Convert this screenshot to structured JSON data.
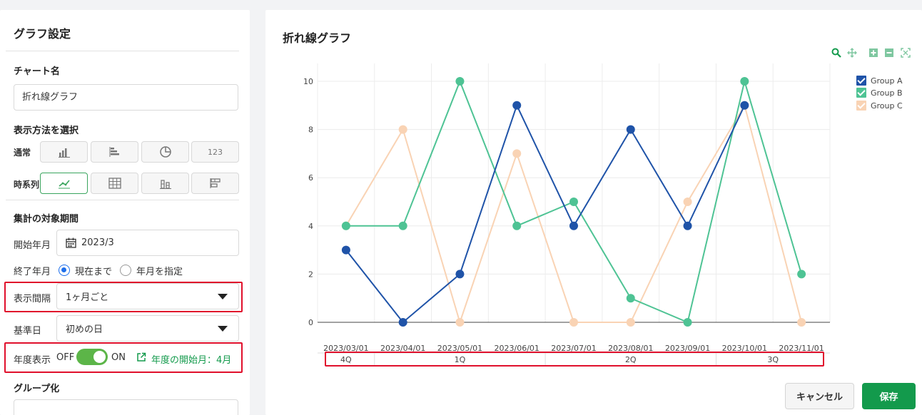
{
  "settings": {
    "title": "グラフ設定",
    "chart_name_label": "チャート名",
    "chart_name_value": "折れ線グラフ",
    "display_method_label": "表示方法を選択",
    "normal_label": "通常",
    "timeseries_label": "時系列",
    "number_mode_label": "123",
    "period_label": "集計の対象期間",
    "start_label": "開始年月",
    "start_value": "2023/3",
    "end_label": "終了年月",
    "end_opt_current": "現在まで",
    "end_opt_specify": "年月を指定",
    "interval_label": "表示間隔",
    "interval_value": "1ヶ月ごと",
    "base_label": "基準日",
    "base_value": "初めの日",
    "fiscal_label": "年度表示",
    "fiscal_off": "OFF",
    "fiscal_on": "ON",
    "fiscal_start": "年度の開始月：4月",
    "group_label": "グループ化"
  },
  "chart_panel": {
    "title": "折れ線グラフ",
    "cancel_label": "キャンセル",
    "save_label": "保存"
  },
  "colors": {
    "group_a": "#1f53a8",
    "group_b": "#4ec394",
    "group_c": "#f9d3b4",
    "accent_green": "#139a4c",
    "highlight_red": "#e0102c"
  },
  "chart_data": {
    "type": "line",
    "x": [
      "2023/03/01",
      "2023/04/01",
      "2023/05/01",
      "2023/06/01",
      "2023/07/01",
      "2023/08/01",
      "2023/09/01",
      "2023/10/01",
      "2023/11/01"
    ],
    "quarters": [
      {
        "label": "4Q",
        "months": [
          "2023/03/01"
        ]
      },
      {
        "label": "1Q",
        "months": [
          "2023/04/01",
          "2023/05/01",
          "2023/06/01"
        ]
      },
      {
        "label": "2Q",
        "months": [
          "2023/07/01",
          "2023/08/01",
          "2023/09/01"
        ]
      },
      {
        "label": "3Q",
        "months": [
          "2023/10/01",
          "2023/11/01"
        ]
      }
    ],
    "series": [
      {
        "name": "Group A",
        "values": [
          3,
          0,
          2,
          9,
          4,
          8,
          4,
          9,
          null
        ]
      },
      {
        "name": "Group B",
        "values": [
          4,
          4,
          10,
          4,
          5,
          1,
          0,
          10,
          2
        ]
      },
      {
        "name": "Group C",
        "values": [
          4,
          8,
          0,
          7,
          0,
          0,
          5,
          9,
          0
        ]
      }
    ],
    "yticks": [
      0,
      2,
      4,
      6,
      8,
      10
    ],
    "ylim": [
      0,
      11
    ],
    "legend_position": "top-right",
    "grid": true
  }
}
